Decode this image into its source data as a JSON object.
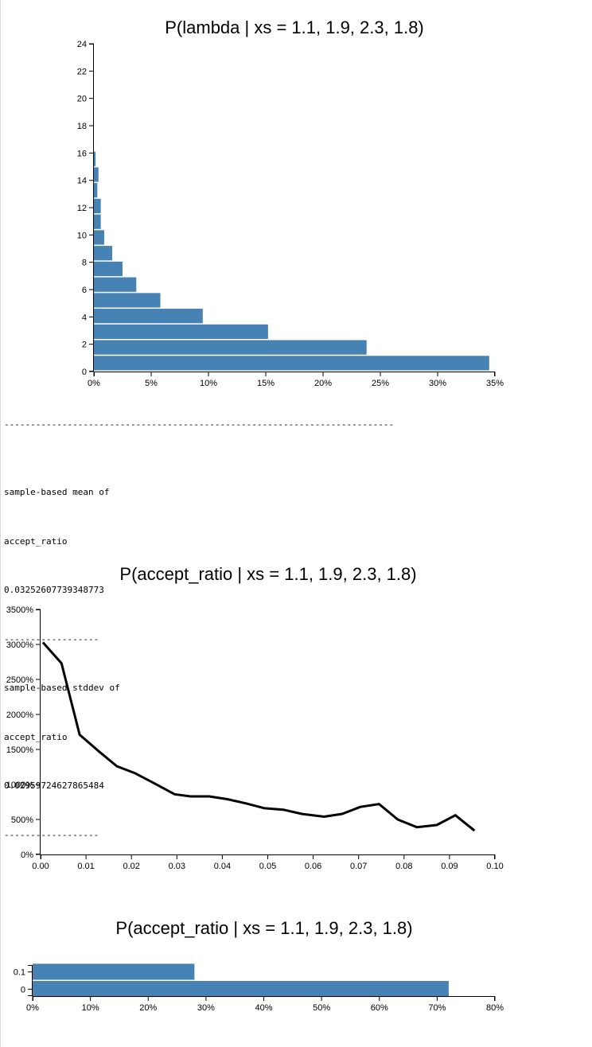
{
  "separator_long": "--------------------------------------------------------------------------",
  "stats": {
    "mean_label_1": "sample-based mean of",
    "mean_label_2": "accept_ratio",
    "mean_value": "0.03252607739348773",
    "sep1": "------------------",
    "std_label_1": "sample-based stddev of",
    "std_label_2": "accept_ratio",
    "std_value": "0.02959724627865484",
    "sep2": "------------------"
  },
  "chart_data": [
    {
      "type": "bar",
      "orientation": "horizontal",
      "title": "P(lambda | xs = 1.1, 1.9, 2.3, 1.8)",
      "xlabel": "",
      "ylabel": "",
      "xlim": [
        0,
        0.35
      ],
      "ylim": [
        0,
        24
      ],
      "x_ticks": [
        0,
        0.05,
        0.1,
        0.15,
        0.2,
        0.25,
        0.3,
        0.35
      ],
      "x_tick_labels": [
        "0%",
        "5%",
        "10%",
        "15%",
        "20%",
        "25%",
        "30%",
        "35%"
      ],
      "y_ticks": [
        0,
        2,
        4,
        6,
        8,
        10,
        12,
        14,
        16,
        18,
        20,
        22,
        24
      ],
      "y_tick_labels": [
        "0",
        "2",
        "4",
        "6",
        "8",
        "10",
        "12",
        "14",
        "16",
        "18",
        "20",
        "22",
        "24"
      ],
      "bars": [
        {
          "lambda": 0,
          "value": 0.345
        },
        {
          "lambda": 1.15,
          "value": 0.238
        },
        {
          "lambda": 2.3,
          "value": 0.152
        },
        {
          "lambda": 3.45,
          "value": 0.095
        },
        {
          "lambda": 4.6,
          "value": 0.058
        },
        {
          "lambda": 5.75,
          "value": 0.037
        },
        {
          "lambda": 6.9,
          "value": 0.025
        },
        {
          "lambda": 8.05,
          "value": 0.016
        },
        {
          "lambda": 9.2,
          "value": 0.009
        },
        {
          "lambda": 10.35,
          "value": 0.006
        },
        {
          "lambda": 11.5,
          "value": 0.006
        },
        {
          "lambda": 12.65,
          "value": 0.003
        },
        {
          "lambda": 13.8,
          "value": 0.004
        },
        {
          "lambda": 14.95,
          "value": 0.0015
        }
      ],
      "bar_step": 1.15,
      "color": "#4682b4"
    },
    {
      "type": "line",
      "title": "P(accept_ratio | xs = 1.1, 1.9, 2.3, 1.8)",
      "xlabel": "",
      "ylabel": "",
      "xlim": [
        0,
        0.1
      ],
      "ylim": [
        0,
        35
      ],
      "x_ticks": [
        0,
        0.01,
        0.02,
        0.03,
        0.04,
        0.05,
        0.06,
        0.07,
        0.08,
        0.09,
        0.1
      ],
      "x_tick_labels": [
        "0.00",
        "0.01",
        "0.02",
        "0.03",
        "0.04",
        "0.05",
        "0.06",
        "0.07",
        "0.08",
        "0.09",
        "0.10"
      ],
      "y_ticks": [
        0,
        5,
        10,
        15,
        20,
        25,
        30,
        35
      ],
      "y_tick_labels": [
        "0%",
        "500%",
        "1000%",
        "1500%",
        "2000%",
        "2500%",
        "3000%",
        "3500%"
      ],
      "x": [
        0.0005,
        0.0046,
        0.0086,
        0.0127,
        0.0168,
        0.0208,
        0.0249,
        0.0295,
        0.033,
        0.0371,
        0.0411,
        0.0452,
        0.0493,
        0.0534,
        0.0575,
        0.0624,
        0.0664,
        0.0704,
        0.0745,
        0.0786,
        0.0828,
        0.0872,
        0.0913,
        0.0955
      ],
      "y": [
        30.3,
        27.3,
        17.1,
        14.8,
        12.6,
        11.6,
        10.2,
        8.6,
        8.3,
        8.3,
        7.9,
        7.3,
        6.6,
        6.4,
        5.8,
        5.4,
        5.8,
        6.8,
        7.2,
        5.0,
        3.9,
        4.2,
        5.6,
        3.4
      ],
      "color": "#000000"
    },
    {
      "type": "bar",
      "orientation": "horizontal",
      "title": "P(accept_ratio | xs = 1.1, 1.9, 2.3, 1.8)",
      "xlabel": "",
      "ylabel": "",
      "xlim": [
        0,
        0.8
      ],
      "ylim": [
        -0.04,
        0.14
      ],
      "x_ticks": [
        0,
        0.1,
        0.2,
        0.3,
        0.4,
        0.5,
        0.6,
        0.7,
        0.8
      ],
      "x_tick_labels": [
        "0%",
        "10%",
        "20%",
        "30%",
        "40%",
        "50%",
        "60%",
        "70%",
        "80%"
      ],
      "y_ticks": [
        0,
        0.1
      ],
      "y_tick_labels": [
        "0",
        "0.1"
      ],
      "bars": [
        {
          "accept_ratio": 0,
          "value": 0.72
        },
        {
          "accept_ratio": 0.1,
          "value": 0.28
        }
      ],
      "color": "#4682b4"
    }
  ]
}
